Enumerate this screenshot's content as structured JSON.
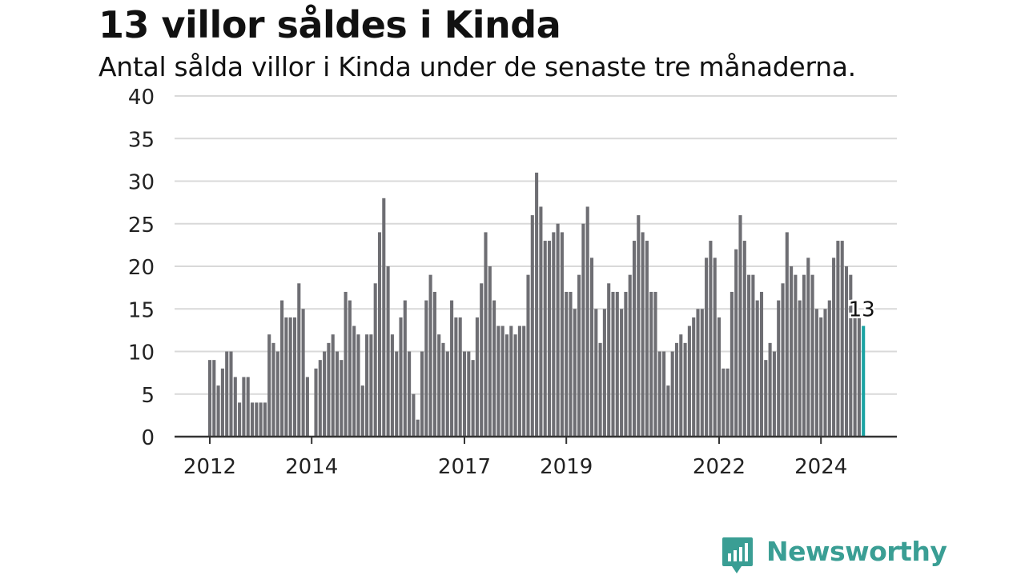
{
  "title": "13 villor såldes i Kinda",
  "subtitle": "Antal sålda villor i Kinda under de senaste tre månaderna.",
  "brand": {
    "name": "Newsworthy",
    "icon": "newsworthy-logo-icon",
    "color": "#3a9e94"
  },
  "colors": {
    "bar": "#6e6e73",
    "highlight": "#1aa3a3",
    "grid": "#d9d9d9",
    "axis": "#333333"
  },
  "chart_data": {
    "type": "bar",
    "title": "13 villor såldes i Kinda",
    "subtitle": "Antal sålda villor i Kinda under de senaste tre månaderna.",
    "xlabel": "",
    "ylabel": "",
    "ylim": [
      0,
      40
    ],
    "yticks": [
      0,
      5,
      10,
      15,
      20,
      25,
      30,
      35,
      40
    ],
    "xticks": [
      "2012",
      "2014",
      "2017",
      "2019",
      "2022",
      "2024"
    ],
    "grid": true,
    "first_period": "2012-01",
    "frequency": "monthly",
    "values": [
      9,
      9,
      6,
      8,
      10,
      10,
      7,
      4,
      7,
      7,
      4,
      4,
      4,
      4,
      12,
      11,
      10,
      16,
      14,
      14,
      14,
      18,
      15,
      7,
      0,
      8,
      9,
      10,
      11,
      12,
      10,
      9,
      17,
      16,
      13,
      12,
      6,
      12,
      12,
      18,
      24,
      28,
      20,
      12,
      10,
      14,
      16,
      10,
      5,
      2,
      10,
      16,
      19,
      17,
      12,
      11,
      10,
      16,
      14,
      14,
      10,
      10,
      9,
      14,
      18,
      24,
      20,
      16,
      13,
      13,
      12,
      13,
      12,
      13,
      13,
      19,
      26,
      31,
      27,
      23,
      23,
      24,
      25,
      24,
      17,
      17,
      15,
      19,
      25,
      27,
      21,
      15,
      11,
      15,
      18,
      17,
      17,
      15,
      17,
      19,
      23,
      26,
      24,
      23,
      17,
      17,
      10,
      10,
      6,
      10,
      11,
      12,
      11,
      13,
      14,
      15,
      15,
      21,
      23,
      21,
      14,
      8,
      8,
      17,
      22,
      26,
      23,
      19,
      19,
      16,
      17,
      9,
      11,
      10,
      16,
      18,
      24,
      20,
      19,
      16,
      19,
      21,
      19,
      15,
      14,
      15,
      16,
      21,
      23,
      23,
      20,
      19,
      15,
      14,
      13
    ],
    "last_value_label": "13"
  }
}
